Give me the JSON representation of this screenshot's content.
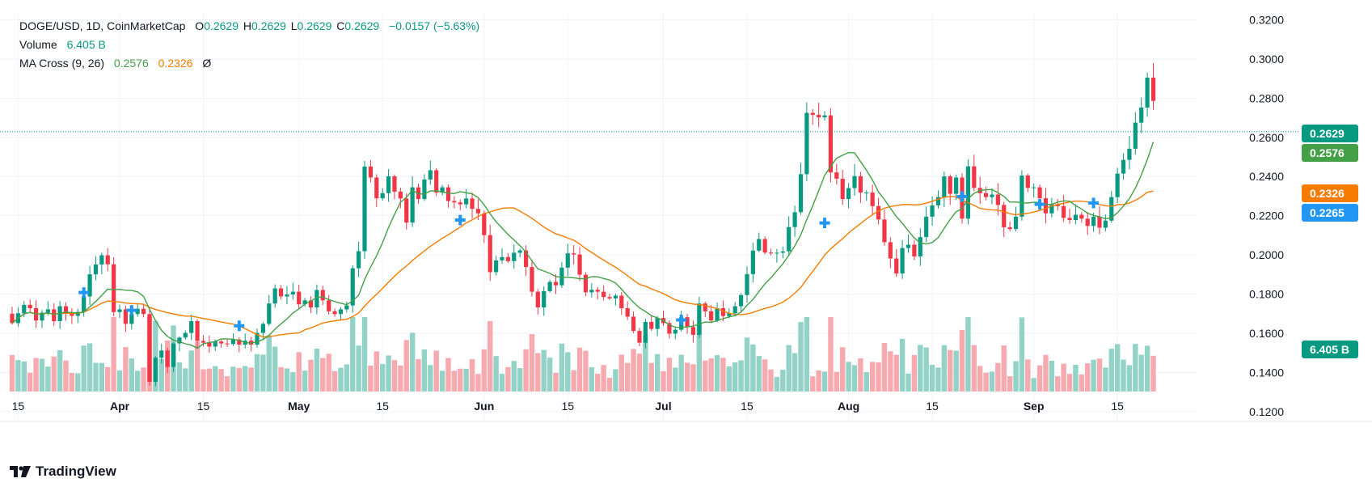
{
  "header": {
    "symbol": "DOGE/USD, 1D, CoinMarketCap",
    "open_label": "O",
    "open": "0.2629",
    "high_label": "H",
    "high": "0.2629",
    "low_label": "L",
    "low": "0.2629",
    "close_label": "C",
    "close": "0.2629",
    "change": "−0.0157 (−5.63%)",
    "volume_label": "Volume",
    "volume": "6.405 B",
    "ma_label": "MA Cross (9, 26)",
    "ma_fast": "0.2576",
    "ma_slow": "0.2326",
    "ma_symbol": "Ø"
  },
  "tags": {
    "last_price": "0.2629",
    "ma_fast": "0.2576",
    "ma_slow": "0.2326",
    "cross": "0.2265",
    "volume": "6.405 B"
  },
  "colors": {
    "up": "#089981",
    "down": "#f23645",
    "vol_up": "#92d2c7",
    "vol_down": "#f7a9b0",
    "ma_fast": "#43a047",
    "ma_slow": "#f57c00",
    "cross": "#2196f3",
    "grid": "#f0f3fa"
  },
  "brand": "TradingView",
  "chart_data": {
    "type": "candlestick",
    "title": "DOGE/USD, 1D, CoinMarketCap",
    "xlabel": "",
    "ylabel": "",
    "ylim": [
      0.115,
      0.3235
    ],
    "y_ticks": [
      "0.1200",
      "0.1400",
      "0.1600",
      "0.1800",
      "0.2000",
      "0.2200",
      "0.2400",
      "0.2600",
      "0.2800",
      "0.3000",
      "0.3200"
    ],
    "x_ticks": [
      {
        "label": "15",
        "index": 1
      },
      {
        "label": "Apr",
        "index": 18
      },
      {
        "label": "15",
        "index": 32
      },
      {
        "label": "May",
        "index": 48
      },
      {
        "label": "15",
        "index": 62
      },
      {
        "label": "Jun",
        "index": 79
      },
      {
        "label": "15",
        "index": 93
      },
      {
        "label": "Jul",
        "index": 109
      },
      {
        "label": "15",
        "index": 123
      },
      {
        "label": "Aug",
        "index": 140
      },
      {
        "label": "15",
        "index": 154
      },
      {
        "label": "Sep",
        "index": 171
      },
      {
        "label": "15",
        "index": 185
      }
    ],
    "close": [
      0.1652,
      0.1702,
      0.1745,
      0.1728,
      0.1665,
      0.1705,
      0.1722,
      0.1662,
      0.1738,
      0.1702,
      0.1689,
      0.1709,
      0.1788,
      0.1901,
      0.1951,
      0.1998,
      0.1952,
      0.1708,
      0.1722,
      0.1648,
      0.1698,
      0.1725,
      0.1698,
      0.1352,
      0.1475,
      0.1512,
      0.1428,
      0.1548,
      0.1578,
      0.1602,
      0.1662,
      0.1561,
      0.1552,
      0.1532,
      0.1558,
      0.1548,
      0.1545,
      0.1568,
      0.1542,
      0.1562,
      0.1542,
      0.1602,
      0.1648,
      0.1752,
      0.1829,
      0.1788,
      0.1798,
      0.1812,
      0.1748,
      0.1768,
      0.1732,
      0.1821,
      0.1768,
      0.1712,
      0.1698,
      0.1722,
      0.1742,
      0.1932,
      0.2019,
      0.2451,
      0.2395,
      0.2289,
      0.2315,
      0.2401,
      0.2323,
      0.2288,
      0.2165,
      0.2345,
      0.2285,
      0.2385,
      0.2432,
      0.2318,
      0.2345,
      0.2275,
      0.2268,
      0.2258,
      0.2288,
      0.2235,
      0.2212,
      0.2101,
      0.1912,
      0.1972,
      0.1989,
      0.1968,
      0.2011,
      0.2023,
      0.1938,
      0.1812,
      0.1732,
      0.1815,
      0.1862,
      0.1845,
      0.1935,
      0.2008,
      0.2002,
      0.1899,
      0.1809,
      0.1822,
      0.1812,
      0.1785,
      0.1778,
      0.1792,
      0.1728,
      0.1685,
      0.1612,
      0.1552,
      0.1658,
      0.1622,
      0.1678,
      0.1652,
      0.1598,
      0.1618,
      0.1682,
      0.1632,
      0.1592,
      0.1752,
      0.1712,
      0.1665,
      0.1728,
      0.1688,
      0.1702,
      0.1738,
      0.1795,
      0.1902,
      0.2022,
      0.2081,
      0.2012,
      0.2008,
      0.2011,
      0.2018,
      0.2142,
      0.2218,
      0.2412,
      0.2725,
      0.2715,
      0.2702,
      0.2712,
      0.2421,
      0.2389,
      0.2285,
      0.2341,
      0.2402,
      0.2318,
      0.2318,
      0.2249,
      0.2181,
      0.2065,
      0.1982,
      0.1905,
      0.2035,
      0.2052,
      0.1992,
      0.2091,
      0.2195,
      0.2253,
      0.2295,
      0.2401,
      0.2312,
      0.2395,
      0.2185,
      0.2452,
      0.2342,
      0.2315,
      0.2295,
      0.2308,
      0.2255,
      0.2141,
      0.2132,
      0.2195,
      0.2405,
      0.2342,
      0.2345,
      0.2289,
      0.2212,
      0.2258,
      0.2249,
      0.2189,
      0.2178,
      0.2205,
      0.2185,
      0.2148,
      0.2195,
      0.2139,
      0.2175,
      0.2295,
      0.2415,
      0.2485,
      0.2542,
      0.2675,
      0.2752,
      0.2905,
      0.2786
    ],
    "ma_fast": {
      "name": "MA 9",
      "last": 0.2576
    },
    "ma_slow": {
      "name": "MA 26",
      "last": 0.2326
    },
    "volume": {
      "unit": "B",
      "last": 6.405
    },
    "cross_points": [
      {
        "index": 12,
        "value": 0.1808
      },
      {
        "index": 20,
        "value": 0.1717
      },
      {
        "index": 38,
        "value": 0.1638
      },
      {
        "index": 75,
        "value": 0.2178
      },
      {
        "index": 112,
        "value": 0.1668
      },
      {
        "index": 136,
        "value": 0.2163
      },
      {
        "index": 159,
        "value": 0.2298
      },
      {
        "index": 172,
        "value": 0.2258
      },
      {
        "index": 181,
        "value": 0.2265
      }
    ]
  }
}
